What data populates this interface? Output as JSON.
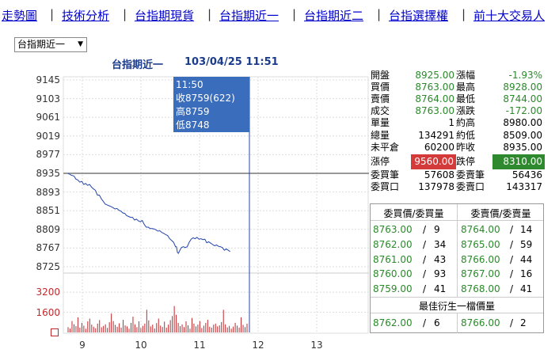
{
  "nav": [
    {
      "label": "走勢圖"
    },
    {
      "label": "技術分析"
    },
    {
      "label": "台指期現貨"
    },
    {
      "label": "台指期近一"
    },
    {
      "label": "台指期近二"
    },
    {
      "label": "台指選擇權"
    },
    {
      "label": "前十大交易人"
    }
  ],
  "selector": {
    "value": "台指期近一"
  },
  "chart": {
    "title": "台指期近一",
    "datetime": "103/04/25 11:51"
  },
  "tooltip": {
    "time": "11:50",
    "close": "收8759(622)",
    "high": "高8759",
    "low": "低8748"
  },
  "chart_data": {
    "type": "line",
    "price": {
      "y_ticks": [
        9145,
        9103,
        9061,
        9019,
        8977,
        8935,
        8893,
        8851,
        8809,
        8767,
        8725
      ],
      "ylim": [
        8725,
        9145
      ],
      "reference": 8935,
      "x_ticks": [
        "9",
        "10",
        "11",
        "12",
        "13"
      ],
      "x_minutes": [
        0,
        60,
        120,
        180,
        240
      ],
      "series": [
        {
          "t": 0,
          "v": 8935
        },
        {
          "t": 3,
          "v": 8931
        },
        {
          "t": 6,
          "v": 8929
        },
        {
          "t": 8,
          "v": 8922
        },
        {
          "t": 10,
          "v": 8920
        },
        {
          "t": 12,
          "v": 8915
        },
        {
          "t": 14,
          "v": 8917
        },
        {
          "t": 16,
          "v": 8910
        },
        {
          "t": 18,
          "v": 8912
        },
        {
          "t": 20,
          "v": 8908
        },
        {
          "t": 22,
          "v": 8910
        },
        {
          "t": 24,
          "v": 8904
        },
        {
          "t": 26,
          "v": 8900
        },
        {
          "t": 28,
          "v": 8897
        },
        {
          "t": 30,
          "v": 8886
        },
        {
          "t": 32,
          "v": 8886
        },
        {
          "t": 34,
          "v": 8878
        },
        {
          "t": 36,
          "v": 8872
        },
        {
          "t": 38,
          "v": 8866
        },
        {
          "t": 40,
          "v": 8864
        },
        {
          "t": 42,
          "v": 8862
        },
        {
          "t": 44,
          "v": 8860
        },
        {
          "t": 46,
          "v": 8858
        },
        {
          "t": 48,
          "v": 8855
        },
        {
          "t": 50,
          "v": 8856
        },
        {
          "t": 52,
          "v": 8852
        },
        {
          "t": 54,
          "v": 8850
        },
        {
          "t": 56,
          "v": 8846
        },
        {
          "t": 58,
          "v": 8845
        },
        {
          "t": 60,
          "v": 8840
        },
        {
          "t": 62,
          "v": 8838
        },
        {
          "t": 64,
          "v": 8836
        },
        {
          "t": 66,
          "v": 8836
        },
        {
          "t": 68,
          "v": 8830
        },
        {
          "t": 70,
          "v": 8832
        },
        {
          "t": 72,
          "v": 8828
        },
        {
          "t": 74,
          "v": 8826
        },
        {
          "t": 76,
          "v": 8829
        },
        {
          "t": 78,
          "v": 8820
        },
        {
          "t": 80,
          "v": 8814
        },
        {
          "t": 82,
          "v": 8814
        },
        {
          "t": 84,
          "v": 8811
        },
        {
          "t": 86,
          "v": 8811
        },
        {
          "t": 88,
          "v": 8810
        },
        {
          "t": 90,
          "v": 8808
        },
        {
          "t": 92,
          "v": 8805
        },
        {
          "t": 94,
          "v": 8806
        },
        {
          "t": 96,
          "v": 8802
        },
        {
          "t": 98,
          "v": 8800
        },
        {
          "t": 100,
          "v": 8797
        },
        {
          "t": 102,
          "v": 8795
        },
        {
          "t": 104,
          "v": 8788
        },
        {
          "t": 106,
          "v": 8784
        },
        {
          "t": 108,
          "v": 8780
        },
        {
          "t": 110,
          "v": 8770
        },
        {
          "t": 111,
          "v": 8770
        },
        {
          "t": 112,
          "v": 8757
        },
        {
          "t": 113,
          "v": 8755
        },
        {
          "t": 114,
          "v": 8760
        },
        {
          "t": 116,
          "v": 8768
        },
        {
          "t": 118,
          "v": 8770
        },
        {
          "t": 120,
          "v": 8768
        },
        {
          "t": 122,
          "v": 8770
        },
        {
          "t": 124,
          "v": 8780
        },
        {
          "t": 126,
          "v": 8787
        },
        {
          "t": 128,
          "v": 8790
        },
        {
          "t": 130,
          "v": 8788
        },
        {
          "t": 132,
          "v": 8791
        },
        {
          "t": 134,
          "v": 8787
        },
        {
          "t": 136,
          "v": 8788
        },
        {
          "t": 138,
          "v": 8786
        },
        {
          "t": 140,
          "v": 8787
        },
        {
          "t": 142,
          "v": 8779
        },
        {
          "t": 144,
          "v": 8781
        },
        {
          "t": 146,
          "v": 8778
        },
        {
          "t": 148,
          "v": 8775
        },
        {
          "t": 150,
          "v": 8772
        },
        {
          "t": 152,
          "v": 8774
        },
        {
          "t": 154,
          "v": 8771
        },
        {
          "t": 156,
          "v": 8770
        },
        {
          "t": 158,
          "v": 8768
        },
        {
          "t": 160,
          "v": 8762
        },
        {
          "t": 162,
          "v": 8765
        },
        {
          "t": 164,
          "v": 8762
        },
        {
          "t": 166,
          "v": 8759
        }
      ]
    },
    "volume": {
      "y_ticks": [
        3200,
        1600
      ],
      "ylim": [
        0,
        4400
      ],
      "bars": [
        420,
        300,
        900,
        650,
        500,
        1200,
        380,
        760,
        540,
        290,
        880,
        1100,
        620,
        450,
        330,
        700,
        980,
        410,
        520,
        640,
        360,
        810,
        1500,
        900,
        600,
        450,
        720,
        380,
        1000,
        560,
        480,
        300,
        760,
        1250,
        640,
        420,
        880,
        350,
        520,
        700,
        1800,
        960,
        480,
        620,
        310,
        740,
        1100,
        540,
        430,
        860,
        380,
        620,
        980,
        1300,
        2100,
        1400,
        760,
        500,
        640,
        420,
        880,
        560,
        300,
        1150,
        700,
        480,
        620,
        900,
        350,
        540,
        760,
        1000,
        450,
        380,
        620,
        700,
        480,
        560,
        820,
        1800,
        640,
        400,
        520,
        300,
        460,
        760,
        540,
        380,
        1200,
        600,
        420,
        700
      ]
    }
  },
  "quote": {
    "left": [
      {
        "label": "開盤",
        "value": "8925.00"
      },
      {
        "label": "買價",
        "value": "8763.00"
      },
      {
        "label": "賣價",
        "value": "8764.00"
      },
      {
        "label": "成交",
        "value": "8763.00"
      },
      {
        "label": "單量",
        "value": "1"
      },
      {
        "label": "總量",
        "value": "134291"
      },
      {
        "label": "未平倉",
        "value": "60200"
      },
      {
        "label": "漲停",
        "value": "9560.00"
      },
      {
        "label": "委買筆",
        "value": "57608"
      },
      {
        "label": "委買口",
        "value": "137978"
      }
    ],
    "right": [
      {
        "label": "漲幅",
        "value": "-1.93%"
      },
      {
        "label": "最高",
        "value": "8928.00"
      },
      {
        "label": "最低",
        "value": "8744.00"
      },
      {
        "label": "漲跌",
        "value": "-172.00"
      },
      {
        "label": "約高",
        "value": "8980.00"
      },
      {
        "label": "約低",
        "value": "8509.00"
      },
      {
        "label": "昨收",
        "value": "8935.00"
      },
      {
        "label": "跌停",
        "value": "8310.00"
      },
      {
        "label": "委賣筆",
        "value": "56436"
      },
      {
        "label": "委賣口",
        "value": "143317"
      }
    ]
  },
  "book": {
    "bid_header": "委買價/委買量",
    "ask_header": "委賣價/委賣量",
    "rows": [
      {
        "bid": "8763.00",
        "bidq": "9",
        "ask": "8764.00",
        "askq": "14"
      },
      {
        "bid": "8762.00",
        "bidq": "34",
        "ask": "8765.00",
        "askq": "59"
      },
      {
        "bid": "8761.00",
        "bidq": "43",
        "ask": "8766.00",
        "askq": "44"
      },
      {
        "bid": "8760.00",
        "bidq": "93",
        "ask": "8767.00",
        "askq": "16"
      },
      {
        "bid": "8759.00",
        "bidq": "41",
        "ask": "8768.00",
        "askq": "41"
      }
    ],
    "best_header": "最佳衍生一檔價量",
    "best": {
      "bid": "8762.00",
      "bidq": "6",
      "ask": "8766.00",
      "askq": "2"
    }
  },
  "colors": {
    "price_line": "#2244aa",
    "volume_bar": "#c0282c",
    "ref_line": "#999999",
    "tooltip": "#3a6dbb",
    "up_limit": "#d43a3a",
    "down_limit": "#2f8a2f"
  }
}
